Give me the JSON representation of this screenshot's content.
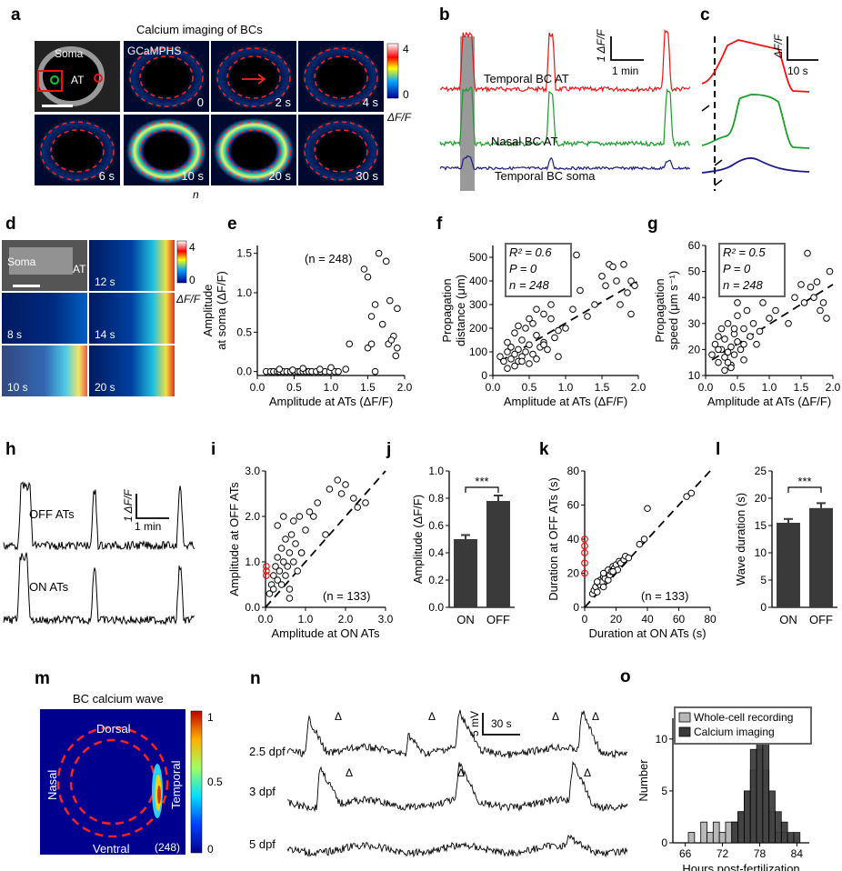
{
  "panels": {
    "a": {
      "letter": "a",
      "title": "Calcium imaging of BCs",
      "soma_label": "Soma",
      "at_label": "AT",
      "indicator": "GCaMPHS",
      "frames": [
        "",
        "0",
        "2 s",
        "4 s",
        "6 s",
        "10 s",
        "20 s",
        "30 s"
      ],
      "footnote": "n",
      "colorbar": {
        "max": "4",
        "min": "0",
        "label": "ΔF/F"
      }
    },
    "b": {
      "letter": "b",
      "traces": [
        {
          "name": "Temporal BC AT",
          "color": "#ee1111"
        },
        {
          "name": "Nasal BC AT",
          "color": "#1a9c2a"
        },
        {
          "name": "Temporal BC soma",
          "color": "#1a1a8a"
        }
      ],
      "scale_y": "1 ΔF/F",
      "scale_x": "1 min"
    },
    "c": {
      "letter": "c",
      "scale_y": "ΔF/F",
      "scale_x": "10 s"
    },
    "d": {
      "letter": "d",
      "soma_label": "Soma",
      "at_label": "AT",
      "frames": [
        "12 s",
        "8 s",
        "14 s",
        "10 s",
        "20 s"
      ],
      "colorbar": {
        "max": "4",
        "min": "0",
        "label": "ΔF/F"
      }
    },
    "h": {
      "letter": "h",
      "traces": [
        "OFF ATs",
        "ON ATs"
      ],
      "scale_y": "1 ΔF/F",
      "scale_x": "1 min"
    },
    "m": {
      "letter": "m",
      "title": "BC calcium wave",
      "dorsal": "Dorsal",
      "ventral": "Ventral",
      "nasal": "Nasal",
      "temporal": "Temporal",
      "n": "(248)",
      "colorbar": {
        "ticks": [
          "1",
          "0.5",
          "0"
        ]
      }
    },
    "n": {
      "letter": "n",
      "rows": [
        "2.5 dpf",
        "3 dpf",
        "5 dpf"
      ],
      "scale_y": "5 mV",
      "scale_x": "30 s",
      "marker": "Δ"
    }
  },
  "chart_data": [
    {
      "panel": "e",
      "type": "scatter",
      "xlabel": "Amplitude at ATs (ΔF/F)",
      "ylabel": "Amplitude at soma (ΔF/F)",
      "xlim": [
        0,
        2
      ],
      "ylim": [
        -0.05,
        1.6
      ],
      "xticks": [
        "0.0",
        "0.5",
        "1.0",
        "1.5",
        "2.0"
      ],
      "yticks": [
        "0.0",
        "0.5",
        "1.0",
        "1.5"
      ],
      "annotation": "(n = 248)",
      "x": [
        0.12,
        0.18,
        0.22,
        0.27,
        0.3,
        0.35,
        0.4,
        0.45,
        0.5,
        0.55,
        0.58,
        0.62,
        0.66,
        0.7,
        0.74,
        0.8,
        0.86,
        0.92,
        0.98,
        1.05,
        1.1,
        0.3,
        0.48,
        0.62,
        0.85,
        1.0,
        1.2,
        1.25,
        1.45,
        1.5,
        1.5,
        1.55,
        1.55,
        1.6,
        1.6,
        1.65,
        1.7,
        1.75,
        1.78,
        1.8,
        1.85,
        1.88,
        1.9,
        1.9,
        1.82
      ],
      "y": [
        0,
        0,
        0,
        0,
        0,
        0,
        0,
        0,
        0,
        0,
        0,
        0,
        0,
        0,
        0,
        0,
        0,
        0,
        0,
        0,
        0,
        0.03,
        0.02,
        0.04,
        0.03,
        0.05,
        0.03,
        0.35,
        1.3,
        0.3,
        1.2,
        0.35,
        0.7,
        0.85,
        0.0,
        1.5,
        0.6,
        1.4,
        0.35,
        0.9,
        0.45,
        0.2,
        0.8,
        0.3,
        0.4
      ]
    },
    {
      "panel": "f",
      "type": "scatter",
      "xlabel": "Amplitude at ATs (ΔF/F)",
      "ylabel": "Propagation distance (μm)",
      "xlim": [
        0,
        2
      ],
      "ylim": [
        0,
        550
      ],
      "xticks": [
        "0.0",
        "0.5",
        "1.0",
        "1.5",
        "2.0"
      ],
      "yticks": [
        "0",
        "100",
        "200",
        "300",
        "400",
        "500"
      ],
      "stats": [
        "R² = 0.6",
        "P = 0",
        "n = 248"
      ],
      "fit": {
        "x": [
          0.1,
          2.0
        ],
        "y": [
          60,
          400
        ]
      },
      "x": [
        0.1,
        0.15,
        0.2,
        0.2,
        0.25,
        0.25,
        0.3,
        0.3,
        0.35,
        0.35,
        0.4,
        0.4,
        0.45,
        0.45,
        0.5,
        0.5,
        0.55,
        0.6,
        0.6,
        0.65,
        0.7,
        0.7,
        0.75,
        0.8,
        0.85,
        0.9,
        0.9,
        1.0,
        1.0,
        1.1,
        1.15,
        1.2,
        1.3,
        1.4,
        1.5,
        1.55,
        1.6,
        1.65,
        1.7,
        1.75,
        1.8,
        1.85,
        1.9,
        1.9,
        1.95,
        0.3,
        0.4,
        0.5,
        0.6,
        0.2,
        0.35,
        0.55,
        0.7,
        0.8
      ],
      "y": [
        80,
        60,
        100,
        140,
        70,
        120,
        90,
        180,
        110,
        60,
        150,
        80,
        200,
        100,
        130,
        240,
        90,
        170,
        280,
        120,
        140,
        260,
        110,
        300,
        160,
        190,
        80,
        350,
        200,
        280,
        510,
        360,
        250,
        300,
        420,
        380,
        470,
        460,
        400,
        300,
        470,
        350,
        400,
        260,
        380,
        40,
        60,
        50,
        70,
        30,
        210,
        220,
        130,
        240
      ]
    },
    {
      "panel": "g",
      "type": "scatter",
      "xlabel": "Amplitude at ATs (ΔF/F)",
      "ylabel": "Propagation speed (μm s⁻¹)",
      "xlim": [
        0,
        2
      ],
      "ylim": [
        10,
        60
      ],
      "xticks": [
        "0.0",
        "0.5",
        "1.0",
        "1.5",
        "2.0"
      ],
      "yticks": [
        "10",
        "20",
        "30",
        "40",
        "50",
        "60"
      ],
      "stats": [
        "R² = 0.5",
        "P = 0",
        "n = 248"
      ],
      "fit": {
        "x": [
          0.1,
          2.0
        ],
        "y": [
          16,
          45
        ]
      },
      "x": [
        0.1,
        0.15,
        0.2,
        0.2,
        0.25,
        0.25,
        0.3,
        0.3,
        0.35,
        0.35,
        0.4,
        0.4,
        0.45,
        0.45,
        0.5,
        0.5,
        0.55,
        0.6,
        0.6,
        0.65,
        0.7,
        0.75,
        0.8,
        0.85,
        0.9,
        1.0,
        1.1,
        1.2,
        1.3,
        1.4,
        1.5,
        1.55,
        1.6,
        1.65,
        1.7,
        1.75,
        1.8,
        1.85,
        1.9,
        1.95,
        0.3,
        0.4,
        0.5,
        0.2,
        0.35,
        0.6,
        0.45
      ],
      "y": [
        18,
        22,
        15,
        25,
        20,
        28,
        17,
        24,
        19,
        30,
        21,
        14,
        26,
        18,
        23,
        33,
        20,
        28,
        16,
        35,
        25,
        30,
        22,
        27,
        38,
        32,
        35,
        49,
        30,
        40,
        45,
        38,
        57,
        44,
        40,
        46,
        35,
        38,
        32,
        50,
        12,
        13,
        38,
        20,
        15,
        22,
        28
      ]
    },
    {
      "panel": "i",
      "type": "scatter",
      "xlabel": "Amplitude at ON ATs",
      "ylabel": "Amplitude at OFF ATs",
      "xlim": [
        0,
        3
      ],
      "ylim": [
        0,
        3
      ],
      "xticks": [
        "0.0",
        "1.0",
        "2.0",
        "3.0"
      ],
      "yticks": [
        "0.0",
        "1.0",
        "2.0",
        "3.0"
      ],
      "annotation": "(n = 133)",
      "diag": true,
      "x": [
        0.1,
        0.15,
        0.2,
        0.2,
        0.25,
        0.3,
        0.3,
        0.35,
        0.4,
        0.4,
        0.45,
        0.5,
        0.5,
        0.55,
        0.6,
        0.6,
        0.65,
        0.7,
        0.75,
        0.8,
        0.85,
        0.9,
        1.0,
        1.1,
        1.2,
        1.3,
        1.5,
        1.6,
        1.8,
        1.9,
        2.0,
        2.2,
        2.3,
        2.5,
        0.3,
        0.45,
        0.7,
        0.9,
        0.6
      ],
      "y": [
        0.3,
        0.5,
        0.7,
        0.4,
        0.9,
        0.6,
        1.1,
        0.8,
        1.3,
        0.5,
        1.0,
        0.7,
        1.5,
        0.9,
        1.2,
        0.4,
        1.6,
        1.0,
        1.4,
        0.8,
        2.0,
        1.2,
        1.7,
        2.1,
        2.0,
        2.3,
        1.6,
        2.6,
        2.8,
        2.5,
        2.7,
        2.4,
        2.2,
        2.3,
        1.8,
        2.0,
        1.9,
        1.2,
        0.2
      ],
      "red_x": [
        0.02,
        0.02,
        0.02
      ],
      "red_y": [
        0.7,
        0.8,
        0.9
      ]
    },
    {
      "panel": "j",
      "type": "bar",
      "ylabel": "Amplitude (ΔF/F)",
      "categories": [
        "ON",
        "OFF"
      ],
      "values": [
        0.5,
        0.78
      ],
      "errors": [
        0.03,
        0.04
      ],
      "ylim": [
        0,
        1
      ],
      "yticks": [
        "0.0",
        "0.2",
        "0.4",
        "0.6",
        "0.8",
        "1.0"
      ],
      "significance": "***"
    },
    {
      "panel": "k",
      "type": "scatter",
      "xlabel": "Duration at ON ATs (s)",
      "ylabel": "Duration at OFF ATs (s)",
      "xlim": [
        0,
        80
      ],
      "ylim": [
        0,
        80
      ],
      "xticks": [
        "0",
        "20",
        "40",
        "60",
        "80"
      ],
      "yticks": [
        "0",
        "20",
        "40",
        "60",
        "80"
      ],
      "annotation": "(n = 133)",
      "diag": true,
      "x": [
        5,
        6,
        7,
        8,
        9,
        10,
        10,
        11,
        12,
        12,
        13,
        14,
        15,
        15,
        16,
        17,
        18,
        19,
        20,
        21,
        22,
        23,
        25,
        26,
        28,
        35,
        38,
        40,
        65,
        68,
        8,
        12,
        18
      ],
      "y": [
        8,
        10,
        12,
        9,
        14,
        13,
        16,
        15,
        18,
        12,
        17,
        20,
        16,
        22,
        19,
        21,
        24,
        23,
        25,
        22,
        27,
        26,
        28,
        30,
        29,
        37,
        40,
        58,
        65,
        67,
        15,
        20,
        21
      ],
      "red_x": [
        0,
        0,
        0,
        0,
        0
      ],
      "red_y": [
        20,
        26,
        32,
        36,
        40
      ]
    },
    {
      "panel": "l",
      "type": "bar",
      "ylabel": "Wave duration (s)",
      "categories": [
        "ON",
        "OFF"
      ],
      "values": [
        15.5,
        18.2
      ],
      "errors": [
        0.7,
        0.9
      ],
      "ylim": [
        0,
        25
      ],
      "yticks": [
        "0",
        "5",
        "10",
        "15",
        "20",
        "25"
      ],
      "significance": "***"
    },
    {
      "panel": "o",
      "type": "bar",
      "xlabel": "Hours post-fertilization",
      "ylabel": "Number",
      "xticks": [
        "66",
        "72",
        "78",
        "84"
      ],
      "xlim": [
        64,
        86
      ],
      "ylim": [
        0,
        12
      ],
      "yticks": [
        "0",
        "5",
        "10"
      ],
      "series": [
        {
          "name": "Whole-cell recording",
          "color": "#b8b8b8",
          "x": [
            67,
            68,
            69,
            70,
            71,
            72,
            73,
            74,
            75,
            76,
            77,
            78,
            79,
            80,
            81,
            82,
            83
          ],
          "values": [
            1,
            0,
            2,
            1,
            2,
            1,
            2,
            2,
            3,
            5,
            7,
            9,
            7,
            3,
            1,
            1,
            0
          ]
        },
        {
          "name": "Calcium imaging",
          "color": "#3a3a3a",
          "x": [
            74,
            75,
            76,
            77,
            78,
            79,
            80,
            81,
            82,
            83,
            84
          ],
          "values": [
            2,
            3,
            5,
            9,
            11,
            10,
            5,
            3,
            2,
            1,
            1
          ]
        }
      ]
    }
  ]
}
